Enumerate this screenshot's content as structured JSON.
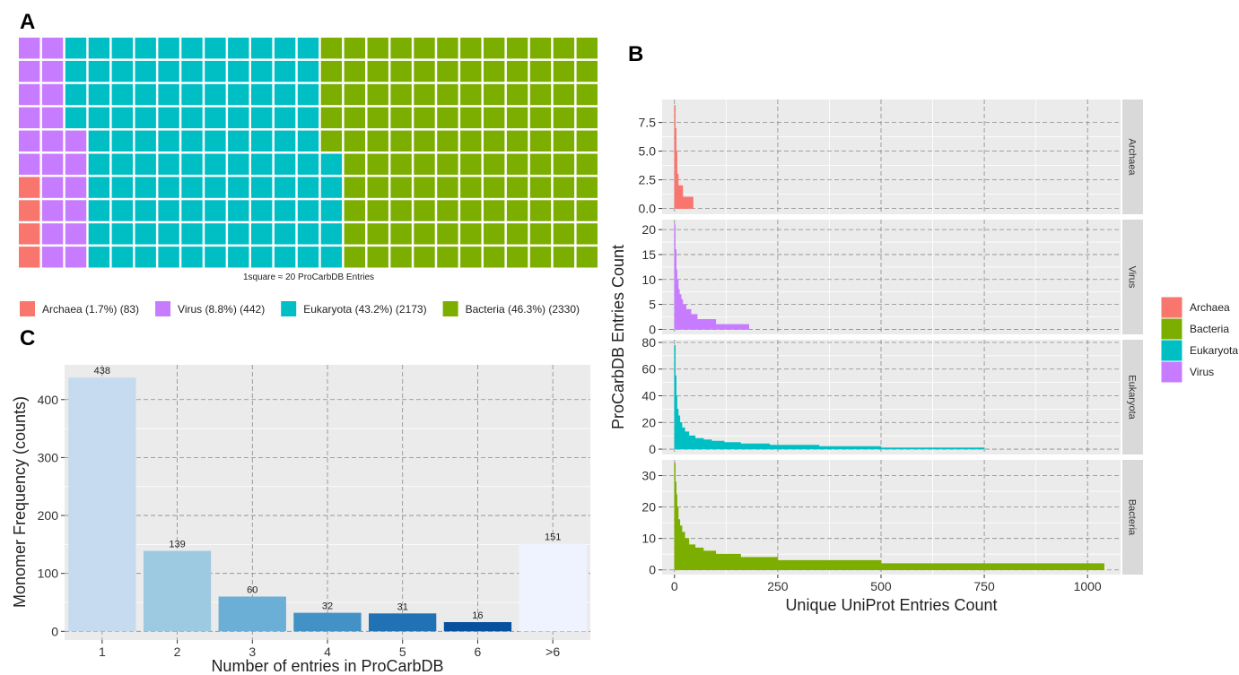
{
  "chart_data": [
    {
      "panel": "A",
      "type": "waffle",
      "caption": "1square ≈ 20 ProCarbDB Entries",
      "rows": 10,
      "columns": 25,
      "categories": [
        {
          "label": "Archaea (1.7%) (83)",
          "squares": 4,
          "color": "#F8766D"
        },
        {
          "label": "Virus (8.8%) (442)",
          "squares": 22,
          "color": "#C77CFF"
        },
        {
          "label": "Eukaryota (43.2%) (2173)",
          "squares": 109,
          "color": "#00BFC4"
        },
        {
          "label": "Bacteria (46.3%) (2330)",
          "squares": 117,
          "color": "#7CAE00"
        }
      ]
    },
    {
      "panel": "B",
      "type": "area",
      "xlabel": "Unique UniProt Entries Count",
      "ylabel": "ProCarbDB Entries Count",
      "xlim": [
        -30,
        1080
      ],
      "x_ticks": [
        0,
        250,
        500,
        750,
        1000
      ],
      "legend": {
        "position": "right",
        "entries": [
          {
            "name": "Archaea",
            "color": "#F8766D"
          },
          {
            "name": "Bacteria",
            "color": "#7CAE00"
          },
          {
            "name": "Eukaryota",
            "color": "#00BFC4"
          },
          {
            "name": "Virus",
            "color": "#C77CFF"
          }
        ]
      },
      "facets": [
        {
          "name": "Archaea",
          "color": "#F8766D",
          "ylim": [
            -0.5,
            9.5
          ],
          "y_ticks": [
            0,
            2.5,
            5,
            7.5
          ],
          "y_tick_labels": [
            "0.0",
            "2.5",
            "5.0",
            "7.5"
          ],
          "steps": [
            [
              0,
              9
            ],
            [
              2,
              7
            ],
            [
              4,
              5
            ],
            [
              6,
              3
            ],
            [
              9,
              2
            ],
            [
              15,
              2
            ],
            [
              20,
              1
            ],
            [
              30,
              1
            ],
            [
              45,
              1
            ],
            [
              45,
              0
            ]
          ]
        },
        {
          "name": "Virus",
          "color": "#C77CFF",
          "ylim": [
            -1,
            22
          ],
          "y_ticks": [
            0,
            5,
            10,
            15,
            20
          ],
          "y_tick_labels": [
            "0",
            "5",
            "10",
            "15",
            "20"
          ],
          "steps": [
            [
              0,
              21
            ],
            [
              2,
              16
            ],
            [
              4,
              12
            ],
            [
              6,
              10
            ],
            [
              9,
              8
            ],
            [
              12,
              7
            ],
            [
              16,
              6
            ],
            [
              20,
              5
            ],
            [
              28,
              4
            ],
            [
              40,
              3
            ],
            [
              55,
              2
            ],
            [
              80,
              2
            ],
            [
              100,
              1
            ],
            [
              150,
              1
            ],
            [
              180,
              1
            ],
            [
              180,
              0
            ]
          ]
        },
        {
          "name": "Eukaryota",
          "color": "#00BFC4",
          "ylim": [
            -4,
            82
          ],
          "y_ticks": [
            0,
            20,
            40,
            60,
            80
          ],
          "y_tick_labels": [
            "0",
            "20",
            "40",
            "60",
            "80"
          ],
          "steps": [
            [
              0,
              78
            ],
            [
              2,
              55
            ],
            [
              4,
              40
            ],
            [
              6,
              30
            ],
            [
              9,
              25
            ],
            [
              13,
              20
            ],
            [
              18,
              16
            ],
            [
              25,
              13
            ],
            [
              35,
              10
            ],
            [
              50,
              8
            ],
            [
              70,
              7
            ],
            [
              90,
              6
            ],
            [
              120,
              5
            ],
            [
              160,
              4
            ],
            [
              230,
              3
            ],
            [
              350,
              2
            ],
            [
              500,
              1
            ],
            [
              750,
              1
            ],
            [
              750,
              0
            ]
          ]
        },
        {
          "name": "Bacteria",
          "color": "#7CAE00",
          "ylim": [
            -1.5,
            35
          ],
          "y_ticks": [
            0,
            10,
            20,
            30
          ],
          "y_tick_labels": [
            "0",
            "10",
            "20",
            "30"
          ],
          "steps": [
            [
              0,
              34
            ],
            [
              2,
              28
            ],
            [
              4,
              24
            ],
            [
              6,
              20
            ],
            [
              9,
              16
            ],
            [
              13,
              14
            ],
            [
              18,
              12
            ],
            [
              25,
              10
            ],
            [
              35,
              8
            ],
            [
              50,
              7
            ],
            [
              70,
              6
            ],
            [
              100,
              5
            ],
            [
              160,
              4
            ],
            [
              250,
              3
            ],
            [
              500,
              2
            ],
            [
              1040,
              1
            ],
            [
              1040,
              0
            ]
          ]
        }
      ]
    },
    {
      "panel": "C",
      "type": "bar",
      "xlabel": "Number of entries in ProCarbDB",
      "ylabel": "Monomer Frequency (counts)",
      "categories": [
        "1",
        "2",
        "3",
        "4",
        "5",
        "6",
        ">6"
      ],
      "values": [
        438,
        139,
        60,
        32,
        31,
        16,
        151
      ],
      "colors": [
        "#C6DBEF",
        "#9ECAE1",
        "#6BAED6",
        "#4292C6",
        "#2171B5",
        "#08519C",
        "#EFF3FF"
      ],
      "ylim": [
        -15,
        460
      ],
      "y_ticks": [
        0,
        100,
        200,
        300,
        400
      ]
    }
  ]
}
